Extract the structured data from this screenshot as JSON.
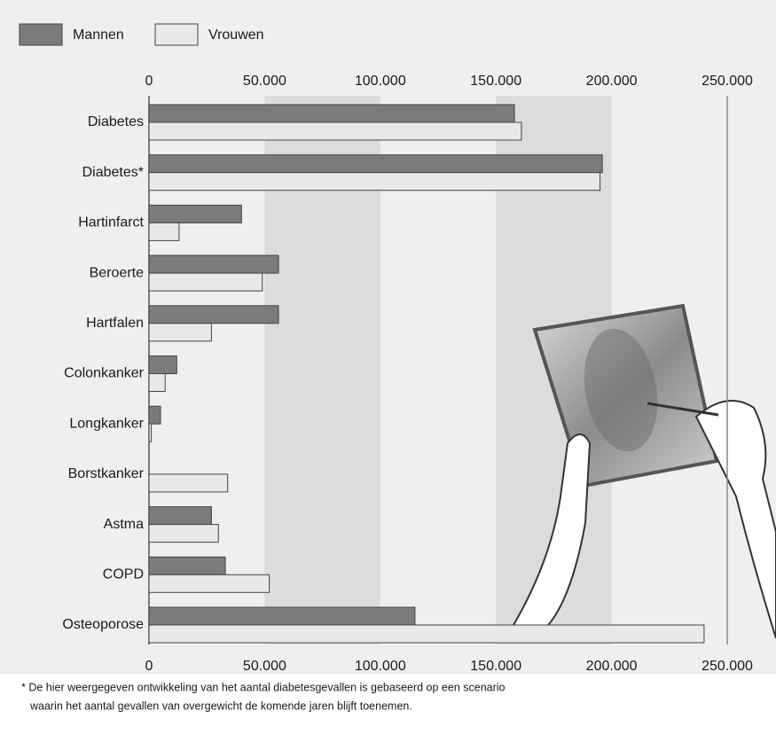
{
  "chart_data": {
    "type": "bar",
    "orientation": "horizontal",
    "categories": [
      "Diabetes",
      "Diabetes*",
      "Hartinfarct",
      "Beroerte",
      "Hartfalen",
      "Colonkanker",
      "Longkanker",
      "Borstkanker",
      "Astma",
      "COPD",
      "Osteoporose"
    ],
    "series": [
      {
        "name": "Mannen",
        "color": "#7b7b7b",
        "values": [
          158000,
          196000,
          40000,
          56000,
          56000,
          12000,
          5000,
          null,
          27000,
          33000,
          115000
        ]
      },
      {
        "name": "Vrouwen",
        "color": "#e9e9e9",
        "values": [
          161000,
          195000,
          13000,
          49000,
          27000,
          7000,
          1000,
          34000,
          30000,
          52000,
          240000
        ]
      }
    ],
    "xlim": [
      0,
      250000
    ],
    "xticks": [
      0,
      {
        "value": 50000,
        "label": "50.000"
      },
      {
        "value": 100000,
        "label": "100.000"
      },
      {
        "value": 150000,
        "label": "150.000"
      },
      {
        "value": 200000,
        "label": "200.000"
      },
      {
        "value": 250000,
        "label": "250.000"
      }
    ],
    "legend": "top-left",
    "footnote": [
      "* De hier weergegeven ontwikkeling van het aantal diabetesgevallen is gebaseerd op een scenario",
      "waarin het aantal gevallen van overgewicht de komende jaren blijft toenemen."
    ]
  }
}
